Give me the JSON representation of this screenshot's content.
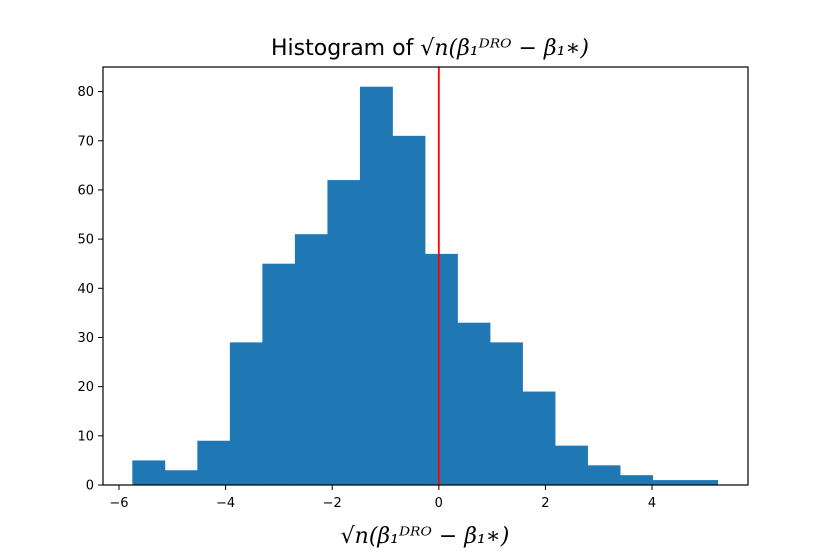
{
  "chart_data": {
    "type": "bar",
    "title": {
      "prefix": "Histogram of ",
      "math": "√n(β₁ᴰᴿᴼ − β₁∗)"
    },
    "xlabel": "√n(β₁ᴰᴿᴼ − β₁∗)",
    "xlim": [
      -6.3,
      5.8
    ],
    "ylim": [
      0,
      85
    ],
    "xticks": [
      -6,
      -4,
      -2,
      0,
      2,
      4
    ],
    "xtick_labels": [
      "−6",
      "−4",
      "−2",
      "0",
      "2",
      "4"
    ],
    "yticks": [
      0,
      10,
      20,
      30,
      40,
      50,
      60,
      70,
      80
    ],
    "ytick_labels": [
      "0",
      "10",
      "20",
      "30",
      "40",
      "50",
      "60",
      "70",
      "80"
    ],
    "bin_edges": [
      -5.75,
      -5.14,
      -4.53,
      -3.92,
      -3.31,
      -2.7,
      -2.09,
      -1.48,
      -0.87,
      -0.26,
      0.35,
      0.96,
      1.57,
      2.18,
      2.79,
      3.4,
      4.01,
      4.62,
      5.23
    ],
    "values": [
      5,
      3,
      9,
      29,
      45,
      51,
      62,
      81,
      71,
      47,
      33,
      29,
      19,
      8,
      4,
      2,
      1,
      1
    ],
    "vline": {
      "x": 0,
      "color": "#ff0000"
    },
    "bar_color": "#1f77b4",
    "grid": false
  }
}
